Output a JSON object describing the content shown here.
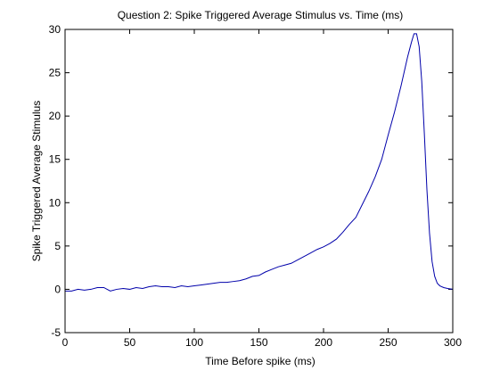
{
  "chart_data": {
    "type": "line",
    "title": "Question 2: Spike Triggered Average Stimulus vs. Time (ms)",
    "xlabel": "Time Before spike (ms)",
    "ylabel": "Spike Triggered Average Stimulus",
    "xlim": [
      0,
      300
    ],
    "ylim": [
      -5,
      30
    ],
    "xticks": [
      0,
      50,
      100,
      150,
      200,
      250,
      300
    ],
    "yticks": [
      -5,
      0,
      5,
      10,
      15,
      20,
      25,
      30
    ],
    "grid": false,
    "line_color": "#0000aa",
    "series": [
      {
        "x": [
          0,
          5,
          10,
          15,
          20,
          25,
          30,
          35,
          40,
          45,
          50,
          55,
          60,
          65,
          70,
          75,
          80,
          85,
          90,
          95,
          100,
          105,
          110,
          115,
          120,
          125,
          130,
          135,
          140,
          145,
          150,
          155,
          160,
          165,
          170,
          175,
          180,
          185,
          190,
          195,
          200,
          205,
          210,
          215,
          220,
          225,
          230,
          235,
          240,
          245,
          250,
          255,
          260,
          265,
          268,
          270,
          272,
          274,
          276,
          278,
          280,
          282,
          284,
          286,
          288,
          290,
          293,
          296,
          300
        ],
        "y": [
          -0.2,
          -0.2,
          0,
          -0.1,
          0,
          0.2,
          0.2,
          -0.2,
          0,
          0.1,
          0,
          0.2,
          0.1,
          0.3,
          0.4,
          0.3,
          0.3,
          0.2,
          0.4,
          0.3,
          0.4,
          0.5,
          0.6,
          0.7,
          0.8,
          0.8,
          0.9,
          1.0,
          1.2,
          1.5,
          1.6,
          2.0,
          2.3,
          2.6,
          2.8,
          3.0,
          3.4,
          3.8,
          4.2,
          4.6,
          4.9,
          5.3,
          5.8,
          6.6,
          7.5,
          8.3,
          9.8,
          11.3,
          13.0,
          15.0,
          17.8,
          20.5,
          23.5,
          26.8,
          28.5,
          29.5,
          29.5,
          28.0,
          24.0,
          18.0,
          11.5,
          6.5,
          3.2,
          1.5,
          0.7,
          0.4,
          0.2,
          0.1,
          0.0
        ]
      }
    ]
  }
}
